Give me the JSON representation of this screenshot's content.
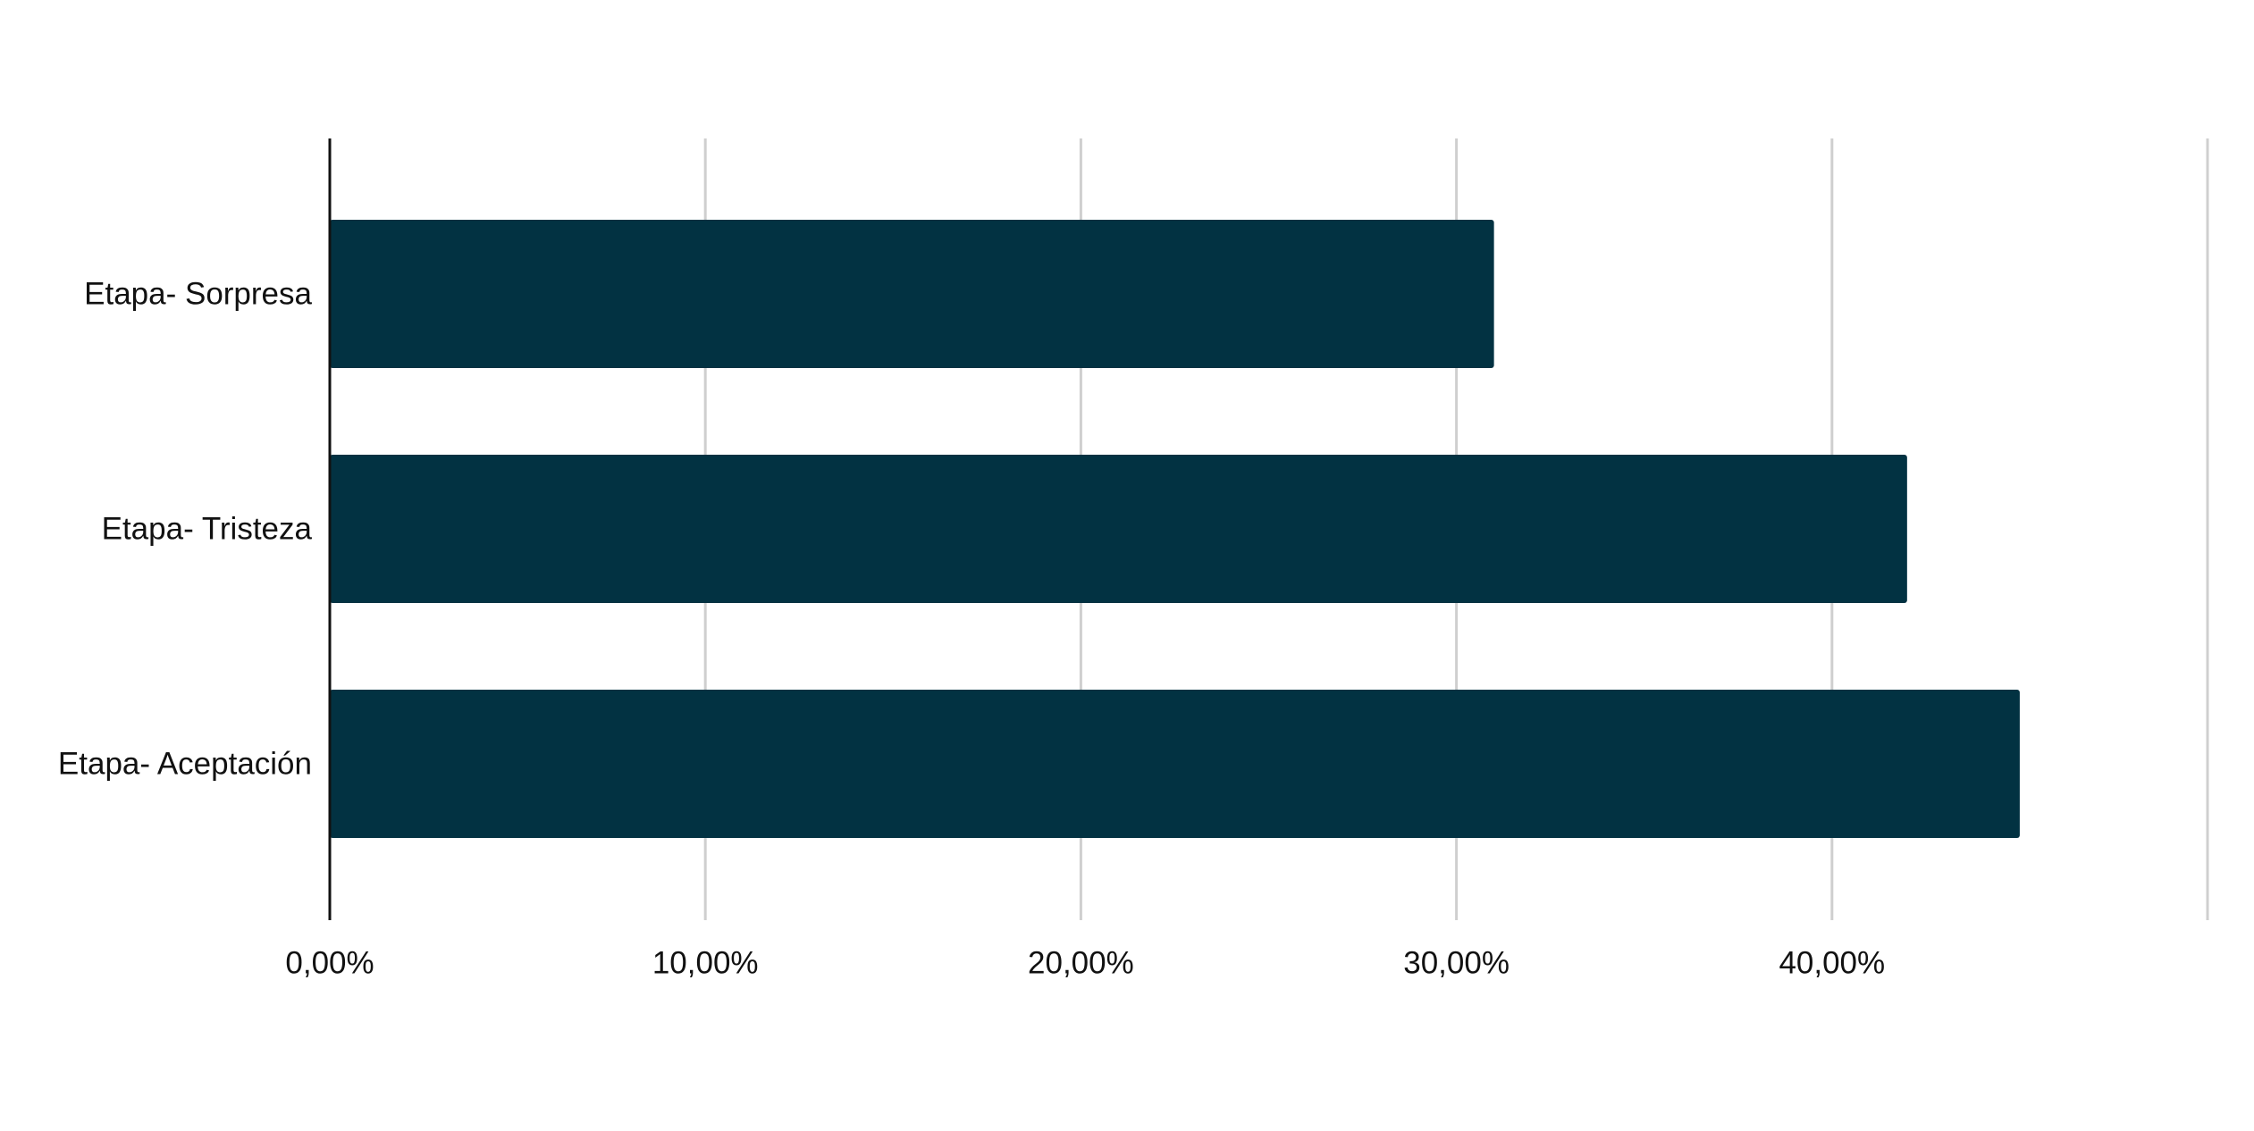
{
  "chart_data": {
    "type": "bar",
    "orientation": "horizontal",
    "categories": [
      "Etapa- Sorpresa",
      "Etapa- Tristeza",
      "Etapa- Aceptación"
    ],
    "values": [
      31,
      42,
      45
    ],
    "value_unit": "percent",
    "xlim": [
      0,
      50
    ],
    "xticks": [
      0,
      10,
      20,
      30,
      40
    ],
    "xtick_labels": [
      "0,00%",
      "10,00%",
      "20,00%",
      "30,00%",
      "40,00%"
    ],
    "title": "",
    "xlabel": "",
    "ylabel": "",
    "grid": true,
    "legend": "none",
    "bar_color": "#023242",
    "grid_color": "#cfcfcf",
    "axis_color": "#111111"
  }
}
